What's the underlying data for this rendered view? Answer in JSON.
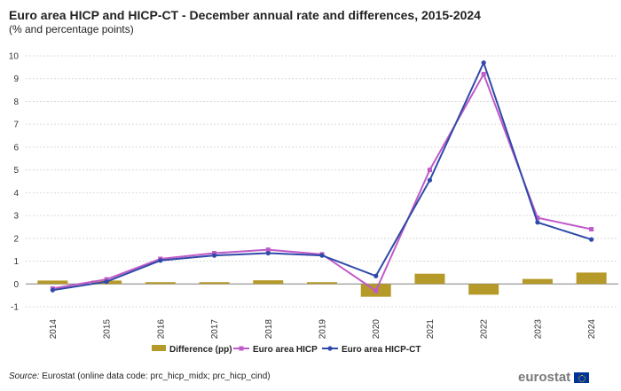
{
  "header": {
    "title": "Euro area HICP and HICP-CT - December annual rate and differences, 2015-2024",
    "subtitle": "(% and percentage points)"
  },
  "footer": {
    "source_label": "Source:",
    "source_text": " Eurostat (online data code: prc_hicp_midx; prc_hicp_cind)",
    "logo_text": "eurostat"
  },
  "colors": {
    "difference": "#b59a2a",
    "hicp": "#c05ac8",
    "hicp_ct": "#2f4aa8",
    "grid": "#d9d9d9",
    "axis": "#888888"
  },
  "chart_data": {
    "type": "bar+line",
    "title": "Euro area HICP and HICP-CT - December annual rate and differences, 2015-2024",
    "subtitle": "(% and percentage points)",
    "categories": [
      "2014",
      "2015",
      "2016",
      "2017",
      "2018",
      "2019",
      "2020",
      "2021",
      "2022",
      "2023",
      "2024"
    ],
    "ylim": [
      -1,
      10
    ],
    "yticks": [
      -1,
      0,
      1,
      2,
      3,
      4,
      5,
      6,
      7,
      8,
      9,
      10
    ],
    "grid": true,
    "legend_position": "bottom",
    "series": [
      {
        "name": "Difference (pp)",
        "type": "bar",
        "values": [
          0.15,
          0.15,
          0.08,
          0.08,
          0.16,
          0.08,
          -0.56,
          0.45,
          -0.47,
          0.22,
          0.5
        ]
      },
      {
        "name": "Euro area HICP",
        "type": "line",
        "values": [
          -0.2,
          0.2,
          1.1,
          1.35,
          1.5,
          1.3,
          -0.3,
          5.0,
          9.2,
          2.9,
          2.4
        ]
      },
      {
        "name": "Euro area HICP-CT",
        "type": "line",
        "values": [
          -0.27,
          0.1,
          1.03,
          1.25,
          1.35,
          1.25,
          0.35,
          4.55,
          9.7,
          2.7,
          1.95
        ]
      }
    ]
  }
}
